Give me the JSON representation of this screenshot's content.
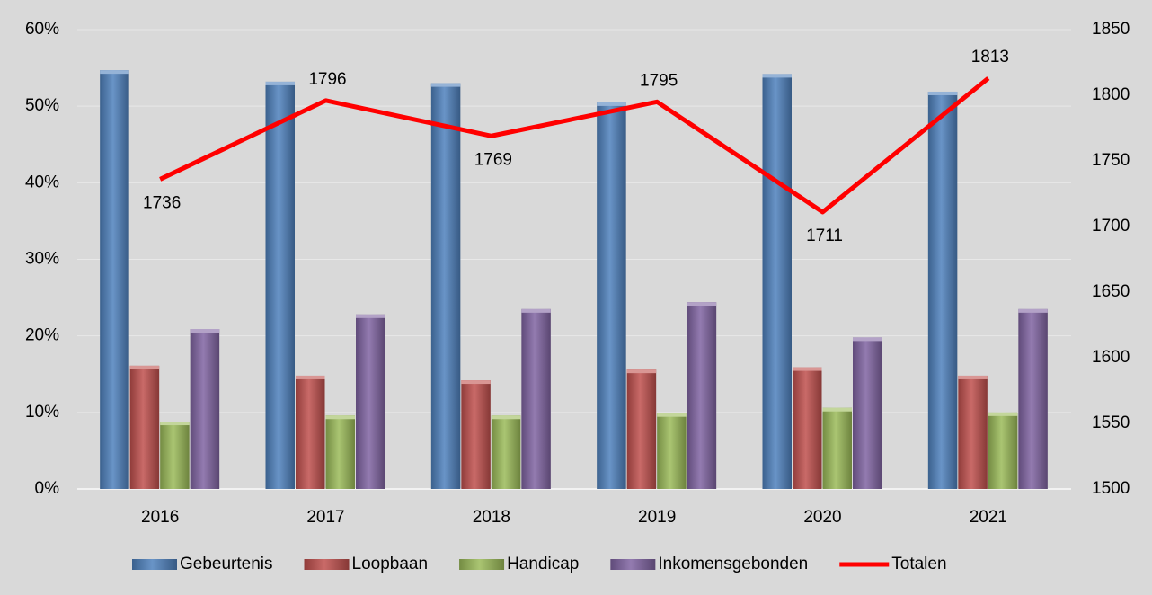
{
  "chart_data": {
    "type": "bar",
    "categories": [
      "2016",
      "2017",
      "2018",
      "2019",
      "2020",
      "2021"
    ],
    "series": [
      {
        "name": "Gebeurtenis",
        "color": "#4f81bd",
        "values": [
          54.7,
          53.2,
          53.0,
          50.5,
          54.2,
          51.9
        ]
      },
      {
        "name": "Loopbaan",
        "color": "#c0504d",
        "values": [
          16.1,
          14.8,
          14.2,
          15.6,
          15.9,
          14.8
        ]
      },
      {
        "name": "Handicap",
        "color": "#9bbb59",
        "values": [
          8.8,
          9.6,
          9.6,
          9.9,
          10.6,
          10.0
        ]
      },
      {
        "name": "Inkomensgebonden",
        "color": "#8064a2",
        "values": [
          20.9,
          22.8,
          23.5,
          24.4,
          19.8,
          23.5
        ]
      },
      {
        "name": "Totalen",
        "color": "#ff0000",
        "type": "line",
        "axis": "y2",
        "values": [
          1736,
          1796,
          1769,
          1795,
          1711,
          1813
        ]
      }
    ],
    "ylim": [
      0,
      60
    ],
    "yticks": [
      {
        "value": 0,
        "label": "0%"
      },
      {
        "value": 10,
        "label": "10%"
      },
      {
        "value": 20,
        "label": "20%"
      },
      {
        "value": 30,
        "label": "30%"
      },
      {
        "value": 40,
        "label": "40%"
      },
      {
        "value": 50,
        "label": "50%"
      },
      {
        "value": 60,
        "label": "60%"
      }
    ],
    "y2lim": [
      1500,
      1850
    ],
    "y2ticks": [
      1500,
      1550,
      1600,
      1650,
      1700,
      1750,
      1800,
      1850
    ],
    "grid": true,
    "legend": "bottom"
  }
}
